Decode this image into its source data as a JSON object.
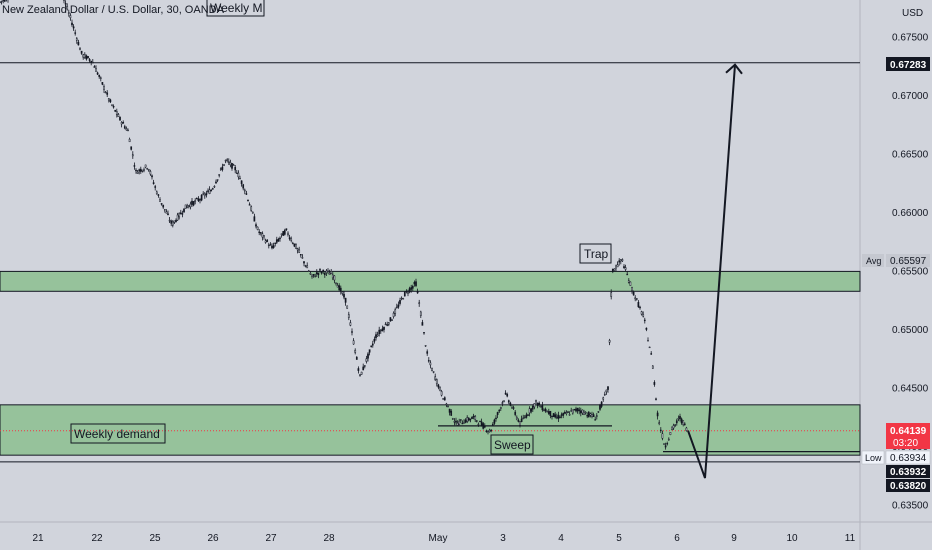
{
  "header": {
    "title": "New Zealand Dollar / U.S. Dollar, 30, OANDA",
    "currency": "USD"
  },
  "colors": {
    "background": "#d1d4dc",
    "zone_fill": "#96c29b",
    "candle": "#131722",
    "price_tag": "#f23645",
    "label_tag": "#131722",
    "grey_tag": "#c5c8d0"
  },
  "annotations": {
    "weekly_m": "Weekly M",
    "trap": "Trap",
    "sweep": "Sweep",
    "weekly_demand": "Weekly demand"
  },
  "price_axis": {
    "ticks": [
      "0.67500",
      "0.67000",
      "0.66500",
      "0.66000",
      "0.65500",
      "0.65000",
      "0.64500",
      "0.64000",
      "0.63500"
    ],
    "tags": {
      "target": "0.67283",
      "avg_label": "Avg",
      "avg_value": "0.65597",
      "current_price": "0.64139",
      "countdown": "03:20",
      "low_label": "Low",
      "low_value": "0.63934",
      "zone_bottom": "0.63932",
      "projection_low": "0.63820"
    }
  },
  "time_axis": {
    "labels": [
      "21",
      "22",
      "25",
      "26",
      "27",
      "28",
      "May",
      "3",
      "4",
      "5",
      "6",
      "9",
      "10",
      "11"
    ]
  },
  "chart_data": {
    "type": "candlestick",
    "symbol": "NZDUSD",
    "timeframe": "30",
    "y_range": [
      0.6335,
      0.678
    ],
    "path_points": [
      {
        "x": 0,
        "price": 0.678
      },
      {
        "x": 18,
        "price": 0.679
      },
      {
        "x": 40,
        "price": 0.679
      },
      {
        "x": 60,
        "price": 0.6792
      },
      {
        "x": 73,
        "price": 0.676
      },
      {
        "x": 82,
        "price": 0.6735
      },
      {
        "x": 92,
        "price": 0.673
      },
      {
        "x": 100,
        "price": 0.6715
      },
      {
        "x": 110,
        "price": 0.6695
      },
      {
        "x": 120,
        "price": 0.668
      },
      {
        "x": 128,
        "price": 0.667
      },
      {
        "x": 136,
        "price": 0.6635
      },
      {
        "x": 148,
        "price": 0.664
      },
      {
        "x": 158,
        "price": 0.6615
      },
      {
        "x": 172,
        "price": 0.659
      },
      {
        "x": 186,
        "price": 0.6605
      },
      {
        "x": 200,
        "price": 0.6612
      },
      {
        "x": 212,
        "price": 0.662
      },
      {
        "x": 226,
        "price": 0.6645
      },
      {
        "x": 236,
        "price": 0.6637
      },
      {
        "x": 245,
        "price": 0.662
      },
      {
        "x": 258,
        "price": 0.6585
      },
      {
        "x": 272,
        "price": 0.657
      },
      {
        "x": 286,
        "price": 0.6585
      },
      {
        "x": 300,
        "price": 0.6565
      },
      {
        "x": 312,
        "price": 0.6545
      },
      {
        "x": 320,
        "price": 0.655
      },
      {
        "x": 332,
        "price": 0.6548
      },
      {
        "x": 346,
        "price": 0.6525
      },
      {
        "x": 360,
        "price": 0.646
      },
      {
        "x": 376,
        "price": 0.6495
      },
      {
        "x": 392,
        "price": 0.651
      },
      {
        "x": 404,
        "price": 0.653
      },
      {
        "x": 416,
        "price": 0.654
      },
      {
        "x": 428,
        "price": 0.6475
      },
      {
        "x": 442,
        "price": 0.6445
      },
      {
        "x": 456,
        "price": 0.642
      },
      {
        "x": 474,
        "price": 0.6425
      },
      {
        "x": 490,
        "price": 0.6413
      },
      {
        "x": 506,
        "price": 0.6445
      },
      {
        "x": 520,
        "price": 0.642
      },
      {
        "x": 536,
        "price": 0.6438
      },
      {
        "x": 556,
        "price": 0.6425
      },
      {
        "x": 578,
        "price": 0.6432
      },
      {
        "x": 596,
        "price": 0.6425
      },
      {
        "x": 608,
        "price": 0.645
      },
      {
        "x": 612,
        "price": 0.655
      },
      {
        "x": 622,
        "price": 0.656
      },
      {
        "x": 632,
        "price": 0.6535
      },
      {
        "x": 644,
        "price": 0.651
      },
      {
        "x": 652,
        "price": 0.6475
      },
      {
        "x": 658,
        "price": 0.6425
      },
      {
        "x": 665,
        "price": 0.64
      },
      {
        "x": 672,
        "price": 0.6415
      },
      {
        "x": 680,
        "price": 0.6425
      },
      {
        "x": 688,
        "price": 0.6414
      }
    ],
    "horizontal_levels": [
      0.67283,
      0.63932
    ],
    "zones": [
      {
        "from": 0.6533,
        "to": 0.655
      },
      {
        "from": 0.6393,
        "to": 0.6436
      }
    ],
    "level_lines": {
      "sweep_low": 0.6418,
      "trap_high": 0.6565,
      "post_low_ref": 0.6396
    },
    "projection": {
      "low": 0.6382,
      "target": 0.67283
    }
  }
}
